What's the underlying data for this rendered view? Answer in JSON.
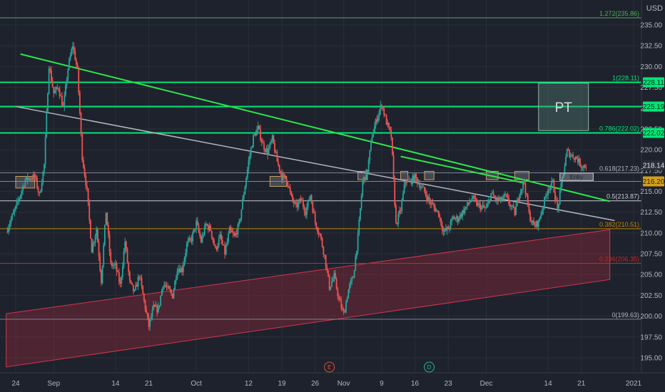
{
  "chart_data": {
    "type": "candlestick",
    "currency_label": "USD",
    "grid": true,
    "y_range": [
      193.2,
      238.0
    ],
    "y_ticks": [
      195,
      197.5,
      200,
      202.5,
      205,
      207.5,
      210,
      212.5,
      215,
      217.5,
      220,
      222.5,
      225,
      227.5,
      230,
      232.5,
      235
    ],
    "x_tick_labels": [
      {
        "label": "24",
        "day": 0
      },
      {
        "label": "Sep",
        "day": 8
      },
      {
        "label": "14",
        "day": 21
      },
      {
        "label": "21",
        "day": 28
      },
      {
        "label": "Oct",
        "day": 38
      },
      {
        "label": "12",
        "day": 49
      },
      {
        "label": "19",
        "day": 56
      },
      {
        "label": "26",
        "day": 63
      },
      {
        "label": "Nov",
        "day": 69
      },
      {
        "label": "9",
        "day": 77
      },
      {
        "label": "16",
        "day": 84
      },
      {
        "label": "23",
        "day": 91
      },
      {
        "label": "Dec",
        "day": 99
      },
      {
        "label": "14",
        "day": 112
      },
      {
        "label": "21",
        "day": 119
      },
      {
        "label": "2021",
        "day": 130
      }
    ],
    "x_range_days": [
      0,
      130
    ],
    "price_path": [
      [
        -2,
        210.2
      ],
      [
        0,
        213.0
      ],
      [
        2,
        216.4
      ],
      [
        4,
        216.8
      ],
      [
        5,
        214.5
      ],
      [
        6,
        218.2
      ],
      [
        7,
        230.2
      ],
      [
        8,
        226.8
      ],
      [
        9,
        227.5
      ],
      [
        10,
        225.0
      ],
      [
        11,
        229.8
      ],
      [
        12,
        232.6
      ],
      [
        13,
        229.5
      ],
      [
        14,
        219.2
      ],
      [
        15,
        215.0
      ],
      [
        16,
        208.0
      ],
      [
        17,
        210.5
      ],
      [
        18,
        204.3
      ],
      [
        19,
        212.6
      ],
      [
        20,
        206.2
      ],
      [
        21,
        206.0
      ],
      [
        22,
        203.7
      ],
      [
        23,
        209.0
      ],
      [
        24,
        204.0
      ],
      [
        25,
        202.8
      ],
      [
        26,
        205.0
      ],
      [
        27,
        201.8
      ],
      [
        28,
        198.8
      ],
      [
        29,
        201.0
      ],
      [
        30,
        200.8
      ],
      [
        31,
        204.0
      ],
      [
        32,
        203.2
      ],
      [
        33,
        202.5
      ],
      [
        34,
        205.8
      ],
      [
        35,
        205.6
      ],
      [
        36,
        208.6
      ],
      [
        37,
        209.3
      ],
      [
        38,
        211.2
      ],
      [
        39,
        209.0
      ],
      [
        40,
        211.0
      ],
      [
        41,
        210.4
      ],
      [
        42,
        208.0
      ],
      [
        43,
        209.5
      ],
      [
        44,
        207.6
      ],
      [
        45,
        210.3
      ],
      [
        46,
        209.5
      ],
      [
        47,
        211.0
      ],
      [
        48,
        214.8
      ],
      [
        49,
        218.6
      ],
      [
        50,
        221.5
      ],
      [
        51,
        222.6
      ],
      [
        52,
        220.6
      ],
      [
        53,
        219.7
      ],
      [
        54,
        221.3
      ],
      [
        55,
        218.6
      ],
      [
        56,
        216.8
      ],
      [
        57,
        216.5
      ],
      [
        58,
        214.2
      ],
      [
        59,
        213.1
      ],
      [
        60,
        214.0
      ],
      [
        61,
        212.6
      ],
      [
        62,
        214.6
      ],
      [
        63,
        211.3
      ],
      [
        64,
        209.8
      ],
      [
        65,
        207.2
      ],
      [
        66,
        203.5
      ],
      [
        67,
        204.8
      ],
      [
        68,
        202.0
      ],
      [
        69,
        200.2
      ],
      [
        70,
        203.2
      ],
      [
        71,
        204.7
      ],
      [
        72,
        209.5
      ],
      [
        73,
        216.2
      ],
      [
        74,
        217.5
      ],
      [
        75,
        221.8
      ],
      [
        76,
        223.8
      ],
      [
        77,
        225.5
      ],
      [
        78,
        223.3
      ],
      [
        79,
        221.6
      ],
      [
        80,
        211.0
      ],
      [
        81,
        212.8
      ],
      [
        82,
        216.4
      ],
      [
        83,
        216.2
      ],
      [
        84,
        216.7
      ],
      [
        85,
        215.8
      ],
      [
        86,
        215.0
      ],
      [
        87,
        213.8
      ],
      [
        88,
        213.1
      ],
      [
        89,
        212.3
      ],
      [
        90,
        210.1
      ],
      [
        91,
        210.5
      ],
      [
        92,
        211.8
      ],
      [
        93,
        211.7
      ],
      [
        94,
        212.5
      ],
      [
        95,
        213.3
      ],
      [
        96,
        214.2
      ],
      [
        97,
        213.5
      ],
      [
        98,
        213.1
      ],
      [
        99,
        212.9
      ],
      [
        100,
        214.7
      ],
      [
        101,
        214.0
      ],
      [
        102,
        213.9
      ],
      [
        103,
        214.4
      ],
      [
        104,
        213.4
      ],
      [
        105,
        212.4
      ],
      [
        106,
        215.0
      ],
      [
        107,
        216.1
      ],
      [
        108,
        212.2
      ],
      [
        109,
        210.8
      ],
      [
        110,
        211.3
      ],
      [
        111,
        213.4
      ],
      [
        112,
        215.4
      ],
      [
        113,
        216.0
      ],
      [
        114,
        212.8
      ],
      [
        115,
        216.5
      ],
      [
        116,
        219.8
      ],
      [
        117,
        219.3
      ],
      [
        118,
        219.0
      ],
      [
        119,
        218.1
      ],
      [
        120,
        218.1
      ]
    ],
    "fib_levels": [
      {
        "ratio_label": "1.272(235.86)",
        "price": 235.86,
        "color": "#4caf50",
        "width": 1
      },
      {
        "ratio_label": "1(228.11)",
        "price": 228.11,
        "color": "#00e676",
        "width": 2
      },
      {
        "ratio_label": "0.786(222.02)",
        "price": 222.02,
        "color": "#00e676",
        "width": 2
      },
      {
        "ratio_label": "0.618(217.23)",
        "price": 217.23,
        "color": "#7e8594",
        "width": 1
      },
      {
        "ratio_label": "0.5(213.87)",
        "price": 213.87,
        "color": "#c9ccd4",
        "width": 1
      },
      {
        "ratio_label": "0.382(210.51)",
        "price": 210.51,
        "color": "#b8860b",
        "width": 1
      },
      {
        "ratio_label": "0.236(206.35)",
        "price": 206.35,
        "color": "#c62828",
        "width": 1
      },
      {
        "ratio_label": "0(199.63)",
        "price": 199.63,
        "color": "#7e8594",
        "width": 1
      }
    ],
    "extra_horizontals": [
      {
        "price": 225.19,
        "color": "#00e676",
        "width": 2
      },
      {
        "price": 216.2,
        "color": "#b8860b",
        "width": 1
      }
    ],
    "price_badges": [
      {
        "label": "228.11",
        "price": 228.11,
        "bg": "#00e676",
        "fg": "#0b2e17"
      },
      {
        "label": "225.19",
        "price": 225.19,
        "bg": "#00e676",
        "fg": "#0b2e17"
      },
      {
        "label": "222.02",
        "price": 222.02,
        "bg": "#00e676",
        "fg": "#0b2e17"
      },
      {
        "label": "218.14",
        "price": 218.14,
        "bg": "#2a2e39",
        "fg": "#e0e3eb"
      },
      {
        "label": "216.20",
        "price": 216.2,
        "bg": "#d4a017",
        "fg": "#1e222d"
      }
    ],
    "trendlines": [
      {
        "from": [
          1,
          231.5
        ],
        "to": [
          125,
          213.8
        ],
        "color": "#2ee64a",
        "width": 2
      },
      {
        "from": [
          0,
          225.2
        ],
        "to": [
          126,
          211.5
        ],
        "color": "#b2b5be",
        "width": 1.5
      },
      {
        "from": [
          81,
          219.2
        ],
        "to": [
          107,
          216.0
        ],
        "color": "#2ee64a",
        "width": 2
      }
    ],
    "channel": {
      "upper_start": [
        -2,
        200.3
      ],
      "upper_end": [
        125,
        210.4
      ],
      "lower_start": [
        -2,
        193.9
      ],
      "lower_end": [
        125,
        204.4
      ],
      "fill": "#b2283c",
      "stroke": "#d2374d"
    },
    "zones": [
      {
        "x1": 0,
        "x2": 4,
        "y1": 216.8,
        "y2": 215.4
      },
      {
        "x1": 53.5,
        "x2": 57,
        "y1": 216.8,
        "y2": 215.6
      },
      {
        "x1": 72,
        "x2": 74,
        "y1": 217.4,
        "y2": 216.4
      },
      {
        "x1": 81,
        "x2": 82.5,
        "y1": 217.4,
        "y2": 216.4
      },
      {
        "x1": 86,
        "x2": 88,
        "y1": 217.4,
        "y2": 216.4
      },
      {
        "x1": 99,
        "x2": 101.5,
        "y1": 217.4,
        "y2": 216.4
      },
      {
        "x1": 105,
        "x2": 108,
        "y1": 217.4,
        "y2": 216.4
      }
    ],
    "pt_box": {
      "label": "PT",
      "x1": 110,
      "x2": 120.5,
      "y1": 228.0,
      "y2": 222.3
    },
    "entry_box": {
      "label": "Entry",
      "x1": 114.5,
      "x2": 121.5,
      "y1": 217.2,
      "y2": 216.3
    },
    "event_markers": [
      {
        "label": "E",
        "day": 66,
        "color": "#e0533b"
      },
      {
        "label": "D",
        "day": 87,
        "color": "#1fbf9a"
      }
    ]
  }
}
